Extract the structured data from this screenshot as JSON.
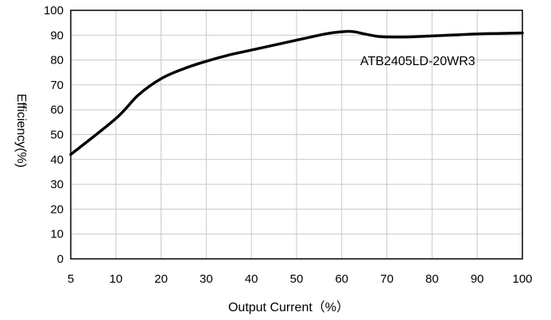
{
  "chart_data": {
    "type": "line",
    "title": "",
    "xlabel": "Output Current（%）",
    "ylabel": "Efficiency(%)",
    "xlim": [
      5,
      100
    ],
    "ylim": [
      0,
      100
    ],
    "x_ticks": [
      5,
      10,
      20,
      30,
      40,
      50,
      60,
      70,
      80,
      90,
      100
    ],
    "x_tick_labels": [
      "5",
      "10",
      "20",
      "30",
      "40",
      "50",
      "60",
      "70",
      "80",
      "90",
      "100"
    ],
    "y_ticks": [
      0,
      10,
      20,
      30,
      40,
      50,
      60,
      70,
      80,
      90,
      100
    ],
    "y_tick_labels": [
      "0",
      "10",
      "20",
      "30",
      "40",
      "50",
      "60",
      "70",
      "80",
      "90",
      "100"
    ],
    "grid": true,
    "series": [
      {
        "name": "ATB2405LD-20WR3",
        "x": [
          5,
          10,
          15,
          20,
          25,
          30,
          35,
          40,
          45,
          50,
          55,
          58,
          61,
          63,
          65,
          68,
          70,
          75,
          80,
          85,
          90,
          95,
          100
        ],
        "y": [
          42,
          56.5,
          66,
          72.5,
          76.5,
          79.5,
          82,
          84,
          86,
          88,
          90,
          91,
          91.5,
          91.3,
          90.5,
          89.5,
          89.3,
          89.3,
          89.7,
          90.1,
          90.5,
          90.7,
          90.9
        ]
      }
    ]
  }
}
